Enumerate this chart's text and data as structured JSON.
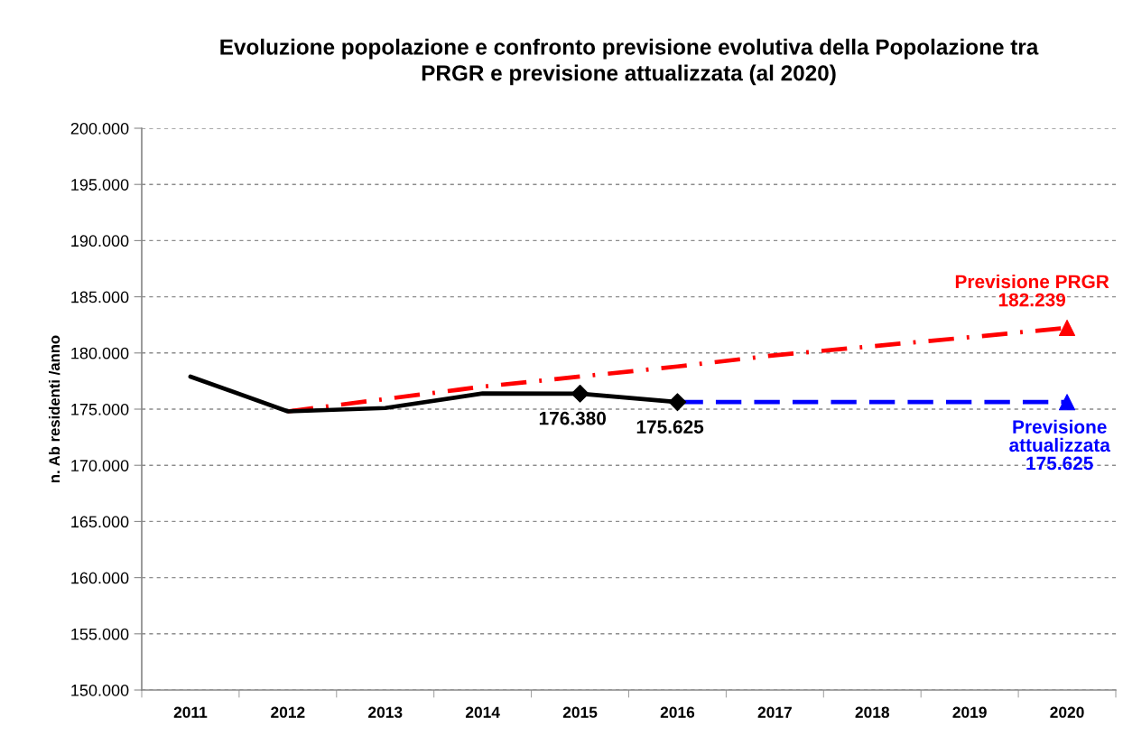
{
  "chart_data": {
    "type": "line",
    "title": "Evoluzione popolazione e confronto previsione evolutiva della Popolazione tra\nPRGR e previsione attualizzata (al 2020)",
    "ylabel": "n. Ab residenti /anno",
    "categories": [
      "2011",
      "2012",
      "2013",
      "2014",
      "2015",
      "2016",
      "2017",
      "2018",
      "2019",
      "2020"
    ],
    "ylim": [
      150000,
      200000
    ],
    "yticks": [
      {
        "value": 150000,
        "label": "150.000"
      },
      {
        "value": 155000,
        "label": "155.000"
      },
      {
        "value": 160000,
        "label": "160.000"
      },
      {
        "value": 165000,
        "label": "165.000"
      },
      {
        "value": 170000,
        "label": "170.000"
      },
      {
        "value": 175000,
        "label": "175.000"
      },
      {
        "value": 180000,
        "label": "180.000"
      },
      {
        "value": 185000,
        "label": "185.000"
      },
      {
        "value": 190000,
        "label": "190.000"
      },
      {
        "value": 195000,
        "label": "195.000"
      },
      {
        "value": 200000,
        "label": "200.000"
      }
    ],
    "grid": "y",
    "series": [
      {
        "color": "#ff0000",
        "line_style": "dashdot",
        "marker": "none",
        "values": [
          null,
          174800,
          175900,
          177000,
          177900,
          178800,
          179800,
          180600,
          181400,
          182239
        ]
      },
      {
        "color": "#0000ff",
        "line_style": "dashed",
        "marker": "none",
        "values": [
          null,
          null,
          null,
          null,
          null,
          175625,
          175625,
          175625,
          175625,
          175625
        ]
      },
      {
        "color": "#000000",
        "line_style": "solid",
        "marker": "none",
        "values": [
          177900,
          174800,
          175100,
          176400,
          176380,
          175625,
          null,
          null,
          null,
          null
        ]
      },
      {
        "type": "scatter",
        "color": "#000000",
        "marker": "diamond",
        "values": [
          null,
          null,
          null,
          null,
          176380,
          175625,
          null,
          null,
          null,
          null
        ],
        "value_labels": [
          null,
          null,
          null,
          null,
          "176.380",
          "175.625",
          null,
          null,
          null,
          null
        ]
      },
      {
        "type": "scatter",
        "name": "Previsione PRGR",
        "color": "#ff0000",
        "marker": "triangle",
        "values": [
          null,
          null,
          null,
          null,
          null,
          null,
          null,
          null,
          null,
          182239
        ],
        "value_labels": [
          null,
          null,
          null,
          null,
          null,
          null,
          null,
          null,
          null,
          "182.239"
        ]
      },
      {
        "type": "scatter",
        "name": "Previsione attualizzata",
        "color": "#0000ff",
        "marker": "triangle",
        "values": [
          null,
          null,
          null,
          null,
          null,
          null,
          null,
          null,
          null,
          175625
        ],
        "value_labels": [
          null,
          null,
          null,
          null,
          null,
          null,
          null,
          null,
          null,
          "175.625"
        ]
      }
    ]
  }
}
